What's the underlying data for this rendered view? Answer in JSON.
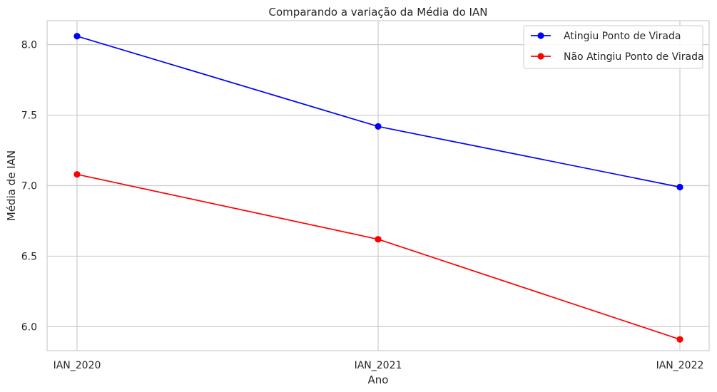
{
  "chart_data": {
    "type": "line",
    "title": "Comparando a variação da Média do IAN",
    "xlabel": "Ano",
    "ylabel": "Média de IAN",
    "categories": [
      "IAN_2020",
      "IAN_2021",
      "IAN_2022"
    ],
    "yticks": [
      "6.0",
      "6.5",
      "7.0",
      "7.5",
      "8.0"
    ],
    "ylim": [
      5.83,
      8.17
    ],
    "grid": true,
    "legend_position": "top-right",
    "series": [
      {
        "name": "Atingiu Ponto de Virada",
        "color": "#0000ff",
        "marker": "circle",
        "values": [
          8.06,
          7.42,
          6.99
        ]
      },
      {
        "name": "Não Atingiu Ponto de Virada",
        "color": "#ff0000",
        "marker": "circle",
        "values": [
          7.08,
          6.62,
          5.91
        ]
      }
    ]
  }
}
